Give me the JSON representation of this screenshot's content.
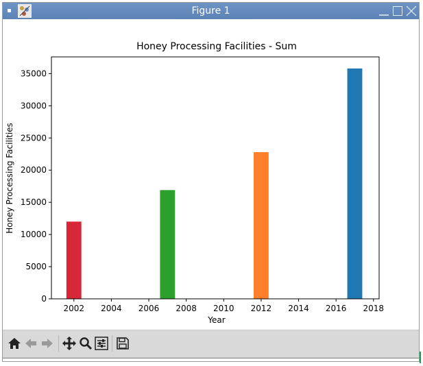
{
  "window": {
    "title": "Figure 1"
  },
  "chart_data": {
    "type": "bar",
    "title": "Honey Processing Facilities - Sum",
    "xlabel": "Year",
    "ylabel": "Honey Processing Facilities",
    "x": [
      2002,
      2007,
      2012,
      2017
    ],
    "values": [
      12000,
      16900,
      22800,
      35800
    ],
    "colors": [
      "#d62839",
      "#2ca02c",
      "#ff7f2a",
      "#1f77b4"
    ],
    "xlim": [
      2000.8,
      2018.3
    ],
    "ylim": [
      0,
      37600
    ],
    "xticks": [
      "2002",
      "2004",
      "2006",
      "2008",
      "2010",
      "2012",
      "2014",
      "2016",
      "2018"
    ],
    "yticks": [
      "0",
      "5000",
      "10000",
      "15000",
      "20000",
      "25000",
      "30000",
      "35000"
    ],
    "grid": false
  },
  "toolbar": {
    "tools": [
      "home-icon",
      "back-arrow-icon",
      "forward-arrow-icon",
      "pan-icon",
      "zoom-icon",
      "configure-subplots-icon",
      "save-icon"
    ]
  }
}
